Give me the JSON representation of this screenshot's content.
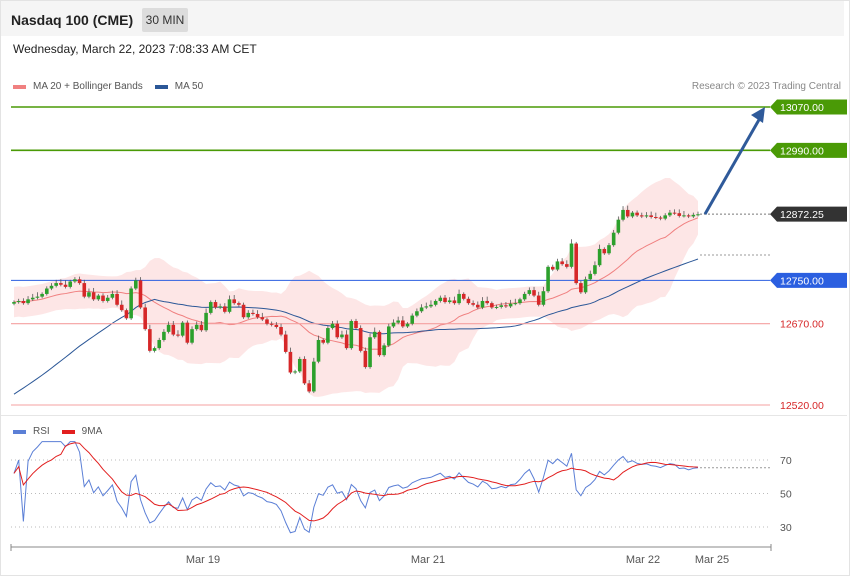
{
  "header": {
    "title": "Nasdaq 100 (CME)",
    "interval": "30 MIN",
    "datetime": "Wednesday, March 22, 2023 7:08:33 AM CET",
    "credit": "Research © 2023 Trading Central"
  },
  "legend_main": [
    {
      "name": "MA 20 + Bollinger Bands",
      "color": "#f08080"
    },
    {
      "name": "MA 50",
      "color": "#2b5797"
    }
  ],
  "legend_rsi": [
    {
      "name": "RSI",
      "color": "#5b7fd6"
    },
    {
      "name": "9MA",
      "color": "#e21f1f"
    }
  ],
  "colors": {
    "up": "#2ca02c",
    "down": "#d62728",
    "target": "#4a9a06",
    "pivot": "#2b5fe0",
    "support": "#f4a0a0",
    "current": "#333333",
    "band_fill": "#fde0e0",
    "arrow": "#2f5a9a"
  },
  "chart_data": [
    {
      "type": "candlestick",
      "title": "Nasdaq 100 (CME)",
      "ylim": [
        12490,
        13085
      ],
      "x_ticks": [
        "Mar 19",
        "Mar 21",
        "Mar 22",
        "Mar 25"
      ],
      "levels": [
        {
          "value": 13070,
          "label": "13070.00",
          "kind": "target"
        },
        {
          "value": 12990,
          "label": "12990.00",
          "kind": "target"
        },
        {
          "value": 12872.25,
          "label": "12872.25",
          "kind": "current"
        },
        {
          "value": 12750,
          "label": "12750.00",
          "kind": "pivot"
        },
        {
          "value": 12670,
          "label": "12670.00",
          "kind": "support"
        },
        {
          "value": 12520,
          "label": "12520.00",
          "kind": "support"
        }
      ],
      "arrow": {
        "from": 12872.25,
        "to": 13070
      },
      "close": [
        12710,
        12712,
        12708,
        12715,
        12718,
        12720,
        12725,
        12735,
        12740,
        12745,
        12742,
        12738,
        12748,
        12752,
        12745,
        12720,
        12728,
        12715,
        12722,
        12712,
        12718,
        12725,
        12705,
        12695,
        12680,
        12735,
        12750,
        12700,
        12660,
        12620,
        12625,
        12640,
        12655,
        12668,
        12650,
        12648,
        12672,
        12635,
        12660,
        12668,
        12658,
        12690,
        12710,
        12700,
        12702,
        12692,
        12715,
        12708,
        12705,
        12682,
        12690,
        12688,
        12682,
        12678,
        12670,
        12668,
        12664,
        12650,
        12618,
        12580,
        12582,
        12605,
        12560,
        12545,
        12600,
        12640,
        12635,
        12662,
        12670,
        12645,
        12650,
        12625,
        12675,
        12662,
        12620,
        12590,
        12645,
        12655,
        12612,
        12630,
        12665,
        12672,
        12676,
        12665,
        12670,
        12685,
        12693,
        12700,
        12702,
        12705,
        12712,
        12718,
        12710,
        12713,
        12708,
        12725,
        12716,
        12708,
        12705,
        12700,
        12712,
        12708,
        12700,
        12701,
        12704,
        12702,
        12707,
        12708,
        12715,
        12725,
        12732,
        12722,
        12705,
        12730,
        12775,
        12770,
        12785,
        12780,
        12775,
        12818,
        12745,
        12728,
        12752,
        12762,
        12778,
        12808,
        12800,
        12815,
        12838,
        12862,
        12880,
        12868,
        12875,
        12870,
        12868,
        12870,
        12867,
        12866,
        12864,
        12870,
        12875,
        12874,
        12869,
        12870,
        12868,
        12871,
        12872
      ]
    },
    {
      "type": "line",
      "title": "RSI",
      "y_ticks": [
        70,
        50,
        30
      ],
      "ylim": [
        16,
        81
      ]
    }
  ],
  "price_labels": [
    "13070.00",
    "12990.00",
    "12872.25",
    "12750.00",
    "12670.00",
    "12520.00"
  ]
}
